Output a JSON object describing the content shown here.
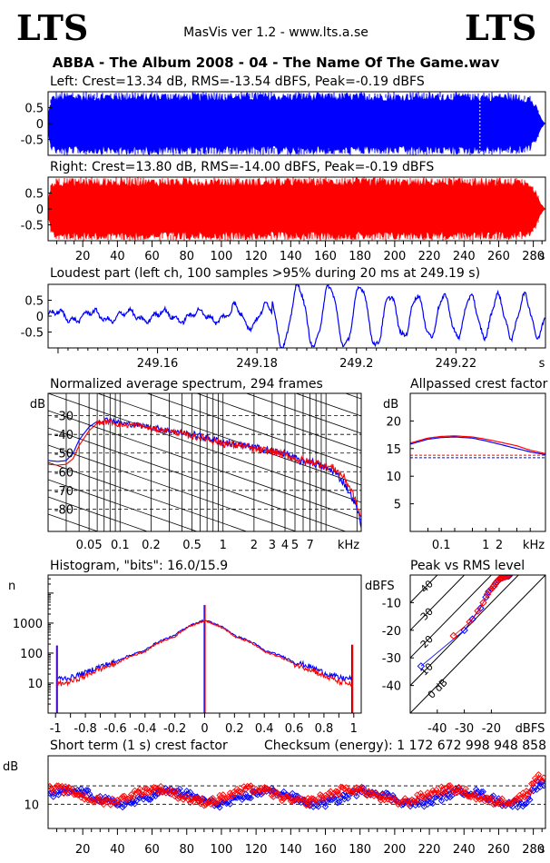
{
  "header": {
    "logo_left": "LTS",
    "logo_right": "LTS",
    "app_title": "MasVis ver 1.2 - www.lts.a.se",
    "file_title": "ABBA - The Album 2008 - 04 - The Name Of The Game.wav"
  },
  "colors": {
    "left": "#0000ff",
    "right": "#ff0000",
    "axis": "#000000",
    "background": "#ffffff"
  },
  "chart_data": [
    {
      "id": "left_waveform",
      "type": "area",
      "title": "Left: Crest=13.34 dB, RMS=-13.54 dBFS, Peak=-0.19 dBFS",
      "y_ticks": [
        "0.5",
        "0",
        "-0.5"
      ],
      "ylim": [
        -1,
        1
      ],
      "xlim": [
        0,
        287
      ],
      "envelope": {
        "x": [
          0,
          2,
          5,
          20,
          100,
          200,
          240,
          270,
          278,
          282,
          284,
          286,
          287
        ],
        "peak": [
          0.35,
          0.9,
          0.99,
          0.99,
          0.99,
          0.99,
          0.99,
          0.97,
          0.9,
          0.55,
          0.25,
          0.06,
          0.0
        ]
      },
      "marker_x": 249.19,
      "grid": false
    },
    {
      "id": "right_waveform",
      "type": "area",
      "title": "Right: Crest=13.80 dB, RMS=-14.00 dBFS, Peak=-0.19 dBFS",
      "y_ticks": [
        "0.5",
        "0",
        "-0.5"
      ],
      "ylim": [
        -1,
        1
      ],
      "xlim": [
        0,
        287
      ],
      "x_ticks": [
        "20",
        "40",
        "60",
        "80",
        "100",
        "120",
        "140",
        "160",
        "180",
        "200",
        "220",
        "240",
        "260",
        "280"
      ],
      "x_unit": "s",
      "envelope": {
        "x": [
          0,
          2,
          5,
          20,
          100,
          200,
          240,
          270,
          278,
          282,
          284,
          286,
          287
        ],
        "peak": [
          0.35,
          0.9,
          0.99,
          0.99,
          0.99,
          0.99,
          0.99,
          0.97,
          0.9,
          0.55,
          0.25,
          0.06,
          0.0
        ]
      },
      "grid": false
    },
    {
      "id": "loudest_part",
      "type": "line",
      "title": "Loudest part (left  ch, 100 samples >95% during 20 ms at 249.19 s)",
      "y_ticks": [
        "0.5",
        "0",
        "-0.5"
      ],
      "ylim": [
        -1,
        1
      ],
      "xlim": [
        249.138,
        249.238
      ],
      "x_ticks": [
        "249.16",
        "249.18",
        "249.2",
        "249.22"
      ],
      "x_unit": "s",
      "segments": [
        {
          "from": 249.138,
          "to": 249.175,
          "amp": 0.15,
          "freq": 140
        },
        {
          "from": 249.175,
          "to": 249.183,
          "amp": 0.35,
          "freq": 150
        },
        {
          "from": 249.183,
          "to": 249.205,
          "amp": 0.95,
          "freq": 160
        },
        {
          "from": 249.205,
          "to": 249.238,
          "amp": 0.65,
          "freq": 185
        }
      ]
    },
    {
      "id": "spectrum",
      "type": "line",
      "title": "Normalized average spectrum, 294 frames",
      "ylabel": "dB",
      "y_ticks": [
        "-30",
        "-40",
        "-50",
        "-60",
        "-70",
        "-80"
      ],
      "ylim": [
        -92,
        -18
      ],
      "x_scale": "log",
      "xlim": [
        0.02,
        22
      ],
      "x_ticks": [
        "0.05",
        "0.1",
        "0.2",
        "0.5",
        "1",
        "2",
        "3",
        "4",
        "5",
        "7"
      ],
      "x_tick_values": [
        0.05,
        0.1,
        0.2,
        0.5,
        1,
        2,
        3,
        4,
        5,
        7
      ],
      "x_unit": "kHz",
      "series": [
        {
          "color": "#0000ff",
          "x": [
            0.02,
            0.025,
            0.03,
            0.035,
            0.04,
            0.05,
            0.06,
            0.08,
            0.1,
            0.15,
            0.2,
            0.3,
            0.5,
            0.7,
            1,
            1.5,
            2,
            3,
            4,
            5,
            6,
            7,
            8,
            10,
            12,
            15,
            18,
            20,
            22
          ],
          "y": [
            -54,
            -54.5,
            -54,
            -50,
            -43,
            -36,
            -33,
            -32,
            -34,
            -35,
            -36,
            -38,
            -40,
            -42,
            -44,
            -46,
            -47,
            -49,
            -50,
            -53,
            -55,
            -54,
            -56,
            -58,
            -60,
            -66,
            -74,
            -80,
            -88
          ]
        },
        {
          "color": "#ff0000",
          "x": [
            0.02,
            0.025,
            0.03,
            0.035,
            0.04,
            0.05,
            0.06,
            0.08,
            0.1,
            0.15,
            0.2,
            0.3,
            0.5,
            0.7,
            1,
            1.5,
            2,
            3,
            4,
            5,
            6,
            7,
            8,
            10,
            12,
            15,
            18,
            20,
            22
          ],
          "y": [
            -56,
            -56.5,
            -56,
            -53,
            -46,
            -38,
            -34,
            -33,
            -35,
            -35,
            -37,
            -38,
            -41,
            -42,
            -45,
            -46,
            -48,
            -49,
            -51,
            -53,
            -54,
            -55,
            -55,
            -57,
            -58,
            -63,
            -71,
            -78,
            -85
          ]
        }
      ]
    },
    {
      "id": "allpassed_crest",
      "type": "line",
      "title": "Allpassed crest factor",
      "ylabel": "dB",
      "y_ticks": [
        "20",
        "15",
        "10",
        "5"
      ],
      "ylim": [
        0,
        25
      ],
      "x_scale": "log",
      "xlim": [
        0.02,
        22
      ],
      "x_ticks": [
        "0.1",
        "1",
        "2",
        "kHz"
      ],
      "x_tick_values": [
        0.1,
        1,
        2
      ],
      "x_unit": "kHz",
      "series": [
        {
          "color": "#0000ff",
          "x": [
            0.02,
            0.05,
            0.1,
            0.2,
            0.5,
            1,
            2,
            5,
            10,
            22
          ],
          "y": [
            15.8,
            16.7,
            17.0,
            17.1,
            16.9,
            16.4,
            15.8,
            15.0,
            14.4,
            13.9
          ]
        },
        {
          "color": "#ff0000",
          "x": [
            0.02,
            0.05,
            0.1,
            0.2,
            0.5,
            1,
            2,
            5,
            10,
            22
          ],
          "y": [
            16.0,
            16.9,
            17.2,
            17.3,
            17.1,
            16.7,
            16.2,
            15.5,
            14.7,
            14.1
          ]
        }
      ],
      "reference_lines": [
        {
          "color": "#0000ff",
          "y": 13.34
        },
        {
          "color": "#ff0000",
          "y": 13.8
        }
      ]
    },
    {
      "id": "histogram",
      "type": "line",
      "title": "Histogram, \"bits\": 16.0/15.9",
      "ylabel": "n",
      "y_scale": "log",
      "y_ticks": [
        "1000",
        "100",
        "10"
      ],
      "y_tick_values": [
        1000,
        100,
        10
      ],
      "ylim": [
        1,
        40000
      ],
      "xlim": [
        -1.05,
        1.05
      ],
      "x_ticks": [
        "-1",
        "-0.8",
        "-0.6",
        "-0.4",
        "-0.2",
        "0",
        "0.2",
        "0.4",
        "0.6",
        "0.8",
        "1"
      ],
      "x_tick_values": [
        -1,
        -0.8,
        -0.6,
        -0.4,
        -0.2,
        0,
        0.2,
        0.4,
        0.6,
        0.8,
        1
      ],
      "series": [
        {
          "color": "#0000ff",
          "x": [
            -0.99,
            -0.9,
            -0.8,
            -0.6,
            -0.4,
            -0.2,
            0,
            0.2,
            0.4,
            0.6,
            0.8,
            0.9,
            0.99
          ],
          "y": [
            14,
            15,
            22,
            50,
            120,
            380,
            1250,
            380,
            120,
            50,
            22,
            15,
            14
          ]
        },
        {
          "color": "#ff0000",
          "x": [
            -0.99,
            -0.9,
            -0.8,
            -0.6,
            -0.4,
            -0.2,
            0,
            0.2,
            0.4,
            0.6,
            0.8,
            0.9,
            0.99
          ],
          "y": [
            9,
            11,
            17,
            42,
            110,
            350,
            1200,
            350,
            110,
            42,
            17,
            11,
            9
          ]
        }
      ],
      "spikes": [
        {
          "x": 0,
          "y": 4000
        },
        {
          "x": -0.99,
          "y": 180
        },
        {
          "x": 0.99,
          "y": 190
        }
      ]
    },
    {
      "id": "peak_vs_rms",
      "type": "scatter",
      "title": "Peak vs RMS level",
      "ylabel": "dBFS",
      "xlabel": "dBFS",
      "y_ticks": [
        "-10",
        "-20",
        "-30",
        "-40"
      ],
      "ylim": [
        -50,
        0
      ],
      "xlim": [
        -50,
        0
      ],
      "x_ticks": [
        "-40",
        "-30",
        "-20"
      ],
      "diagonal_labels": [
        "40",
        "30",
        "20",
        "10",
        "0 dB"
      ],
      "series": [
        {
          "color": "#0000ff",
          "x": [
            -46,
            -30,
            -27,
            -24,
            -22,
            -21,
            -20,
            -19,
            -18.5,
            -18,
            -17.5,
            -17,
            -16.5,
            -16,
            -15.5,
            -15,
            -14.5,
            -14,
            -13.8,
            -13.5
          ],
          "y": [
            -33,
            -20,
            -16,
            -12,
            -8,
            -6,
            -5,
            -4,
            -3.2,
            -2.6,
            -2,
            -1.5,
            -1.2,
            -1,
            -0.8,
            -0.6,
            -0.5,
            -0.4,
            -0.3,
            -0.3
          ]
        },
        {
          "color": "#ff0000",
          "x": [
            -34,
            -28,
            -25,
            -23,
            -21.5,
            -20.5,
            -19.5,
            -19,
            -18.5,
            -18,
            -17.5,
            -17,
            -16.5,
            -16,
            -15.5,
            -15,
            -14.5,
            -14.2,
            -14
          ],
          "y": [
            -22,
            -17,
            -13,
            -10,
            -7,
            -5.5,
            -4.5,
            -3.8,
            -3,
            -2.4,
            -1.8,
            -1.4,
            -1.1,
            -0.9,
            -0.7,
            -0.5,
            -0.4,
            -0.3,
            -0.3
          ]
        }
      ]
    },
    {
      "id": "short_term_crest",
      "type": "scatter",
      "title": "Short term (1 s) crest factor",
      "checksum_label": "Checksum (energy):  1 172 672 998 948 858",
      "ylabel": "dB",
      "y_ticks": [
        "10"
      ],
      "ylim": [
        5,
        20
      ],
      "xlim": [
        0,
        287
      ],
      "x_ticks": [
        "20",
        "40",
        "60",
        "80",
        "100",
        "120",
        "140",
        "160",
        "180",
        "200",
        "220",
        "240",
        "260",
        "280"
      ],
      "x_unit": "s",
      "reference_lines": [
        13.8,
        10
      ],
      "series": [
        {
          "color": "#0000ff",
          "base": 11.4
        },
        {
          "color": "#ff0000",
          "base": 11.8
        }
      ]
    }
  ]
}
